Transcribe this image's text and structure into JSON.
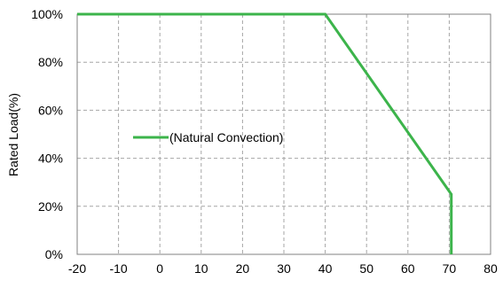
{
  "chart_data": {
    "type": "line",
    "title": "",
    "xlabel": "",
    "ylabel": "Rated Load(%)",
    "xlim": [
      -20,
      80
    ],
    "ylim": [
      0,
      100
    ],
    "x_ticks": [
      "-20",
      "-10",
      "0",
      "10",
      "20",
      "30",
      "40",
      "50",
      "60",
      "70",
      "80"
    ],
    "y_ticks": [
      "0%",
      "20%",
      "40%",
      "60%",
      "80%",
      "100%"
    ],
    "grid": true,
    "legend_position": "center-left",
    "series": [
      {
        "name": "(Natural Convection)",
        "color": "#3cb44b",
        "x": [
          -20,
          40,
          70.5,
          70.5
        ],
        "y": [
          100,
          100,
          25,
          0
        ]
      }
    ]
  }
}
